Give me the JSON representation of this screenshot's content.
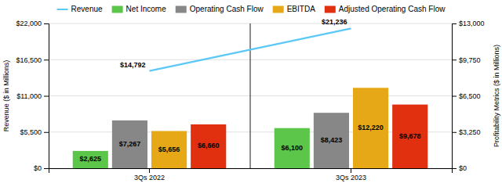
{
  "chart_data": {
    "type": "bar",
    "categories": [
      "3Qs 2022",
      "3Qs 2023"
    ],
    "series": [
      {
        "name": "Revenue",
        "type": "line",
        "color": "#5bc8f5",
        "values": [
          14792,
          21236
        ],
        "value_labels": [
          "$14,792",
          "$21,236"
        ]
      },
      {
        "name": "Net Income",
        "type": "bar",
        "color": "#5cc64a",
        "values": [
          2625,
          6100
        ],
        "value_labels": [
          "$2,625",
          "$6,100"
        ]
      },
      {
        "name": "Operating Cash Flow",
        "type": "bar",
        "color": "#878787",
        "values": [
          7267,
          8423
        ],
        "value_labels": [
          "$7,267",
          "$8,423"
        ]
      },
      {
        "name": "EBITDA",
        "type": "bar",
        "color": "#e6a817",
        "values": [
          5656,
          12220
        ],
        "value_labels": [
          "$5,656",
          "$12,220"
        ]
      },
      {
        "name": "Adjusted Operating Cash Flow",
        "type": "bar",
        "color": "#e03010",
        "values": [
          6660,
          9678
        ],
        "value_labels": [
          "$6,660",
          "$9,678"
        ]
      }
    ],
    "ylabel": "Revenue ($ in Millions)",
    "y2label": "Profitability Metrics ($ in Millions)",
    "ylim": [
      0,
      22000
    ],
    "yticks": [
      {
        "value": 0,
        "label": "$0"
      },
      {
        "value": 5500,
        "label": "$5,500"
      },
      {
        "value": 11000,
        "label": "$11,000"
      },
      {
        "value": 16500,
        "label": "$16,500"
      },
      {
        "value": 22000,
        "label": "$22,000"
      }
    ],
    "y2lim": [
      0,
      13000
    ],
    "y2ticks": [
      {
        "value": 0,
        "label": "$0"
      },
      {
        "value": 3250,
        "label": "$3,250"
      },
      {
        "value": 6500,
        "label": "$6,500"
      },
      {
        "value": 9750,
        "label": "$9,750"
      },
      {
        "value": 13000,
        "label": "$13,000"
      }
    ],
    "grid": true,
    "legend": "top",
    "data_labels": true
  }
}
